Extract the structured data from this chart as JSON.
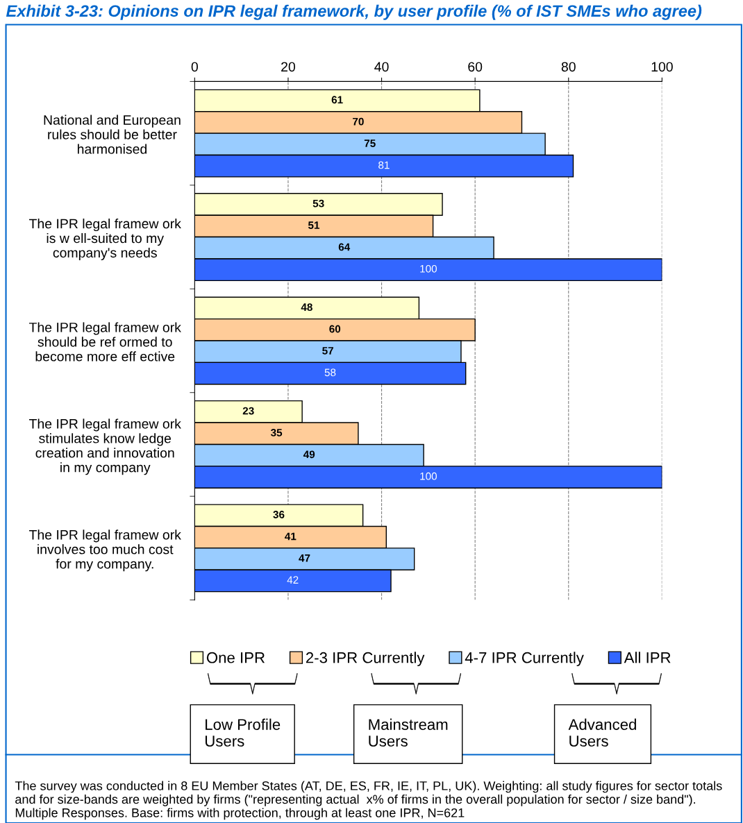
{
  "chart_data": {
    "type": "bar",
    "orientation": "horizontal",
    "title": "Exhibit 3-23: Opinions on IPR legal framework, by user profile (% of IST SMEs who agree)",
    "categories": [
      "National and European\nrules should be better\nharmonised",
      "The IPR legal framew ork\nis w ell-suited to my\ncompany's needs",
      "The IPR legal framew ork\nshould be ref ormed to\nbecome more eff ective",
      "The IPR legal framew ork\nstimulates know ledge\ncreation and innovation\nin my company",
      "The IPR legal framew ork\ninvolves too much cost\nfor my company."
    ],
    "series": [
      {
        "name": "One IPR",
        "color": "#ffffcc",
        "values": [
          61,
          53,
          48,
          23,
          36
        ]
      },
      {
        "name": "2-3 IPR Currently",
        "color": "#ffcc99",
        "values": [
          70,
          51,
          60,
          35,
          41
        ]
      },
      {
        "name": "4-7 IPR Currently",
        "color": "#99ccff",
        "values": [
          75,
          64,
          57,
          49,
          47
        ]
      },
      {
        "name": "All IPR",
        "color": "#3366ff",
        "values": [
          81,
          100,
          58,
          100,
          42
        ]
      }
    ],
    "xlim": [
      0,
      100
    ],
    "xticks": [
      0,
      20,
      40,
      60,
      80,
      100
    ],
    "grid": "x",
    "legend": "bottom",
    "data_labels": true,
    "annotations": [
      "Low Profile\nUsers",
      "Mainstream\nUsers",
      "Advanced\nUsers",
      "The survey was conducted in 8 EU Member States (AT, DE, ES, FR, IE, IT, PL, UK). Weighting: all study figures for sector totals  and for size-bands are weighted by firms (\"representing actual  x% of firms in the overall population for sector / size band\").  Multiple Responses. Base: firms with protection, through at least one IPR, N=621"
    ]
  }
}
